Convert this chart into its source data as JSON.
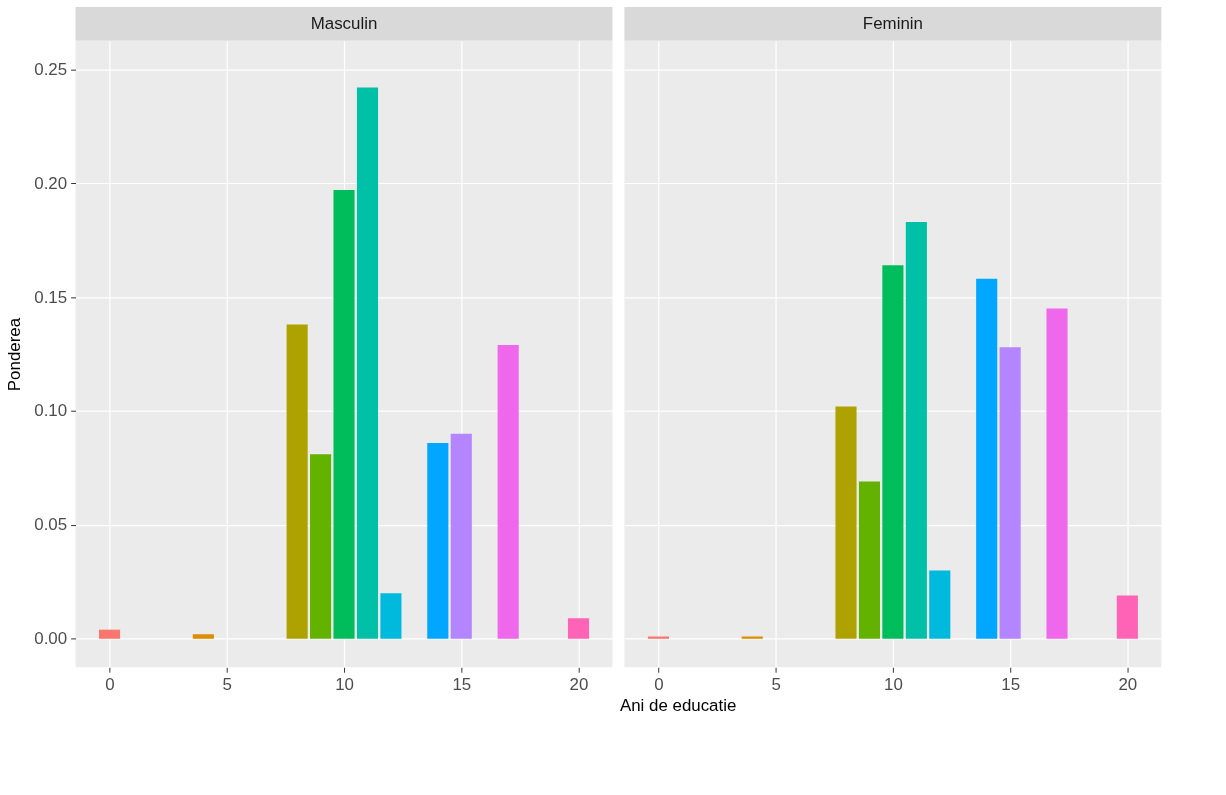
{
  "chart_data": [
    {
      "type": "bar",
      "title": "Masculin",
      "xlabel": "Ani de educatie",
      "ylabel": "Ponderea",
      "x": [
        0,
        4,
        8,
        9,
        10,
        11,
        12,
        14,
        15,
        17,
        20
      ],
      "values": [
        0.004,
        0.002,
        0.138,
        0.081,
        0.197,
        0.242,
        0.02,
        0.086,
        0.09,
        0.129,
        0.009
      ],
      "colors": [
        "#f8766d",
        "#db8e00",
        "#aea200",
        "#64b200",
        "#00bd5c",
        "#00c1a7",
        "#00bade",
        "#00a6ff",
        "#b385ff",
        "#ef67eb",
        "#ff63b6"
      ],
      "xlim": [
        -1.45,
        21.45
      ],
      "xticks": [
        0,
        5,
        10,
        15,
        20
      ],
      "ylim": [
        -0.0125,
        0.2625
      ],
      "yticks": [
        {
          "value": 0,
          "label": "0.00"
        },
        {
          "value": 0.05,
          "label": "0.05"
        },
        {
          "value": 0.1,
          "label": "0.10"
        },
        {
          "value": 0.15,
          "label": "0.15"
        },
        {
          "value": 0.2,
          "label": "0.20"
        },
        {
          "value": 0.25,
          "label": "0.25"
        }
      ],
      "grid": true,
      "legend": false
    },
    {
      "type": "bar",
      "title": "Feminin",
      "x": [
        0,
        4,
        8,
        9,
        10,
        11,
        12,
        14,
        15,
        17,
        20
      ],
      "values": [
        0.001,
        0.001,
        0.102,
        0.069,
        0.164,
        0.183,
        0.03,
        0.158,
        0.128,
        0.145,
        0.019
      ],
      "colors": [
        "#f8766d",
        "#db8e00",
        "#aea200",
        "#64b200",
        "#00bd5c",
        "#00c1a7",
        "#00bade",
        "#00a6ff",
        "#b385ff",
        "#ef67eb",
        "#ff63b6"
      ],
      "xlim": [
        -1.45,
        21.45
      ],
      "xticks": [
        0,
        5,
        10,
        15,
        20
      ],
      "ylim": [
        -0.0125,
        0.2625
      ],
      "yticks": [
        0.0,
        0.05,
        0.1,
        0.15,
        0.2,
        0.25
      ],
      "grid": true,
      "legend": false,
      "tick_labels": "x"
    }
  ]
}
